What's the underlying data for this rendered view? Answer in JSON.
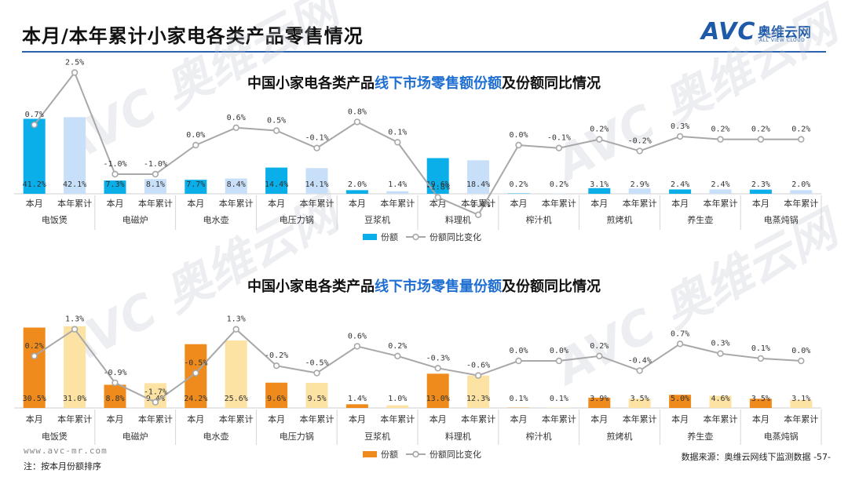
{
  "header": {
    "title": "本月/本年累计小家电各类产品零售情况",
    "logo_text": "AVC",
    "logo_cn": "奥维云网",
    "logo_en": "ALL VIEW CLOUD"
  },
  "colors": {
    "accent": "#2a63ad",
    "share_value_month": "#0aaee8",
    "share_value_ytd": "#c7dff8",
    "share_volume_month": "#ef8b1c",
    "share_volume_ytd": "#fde3a3",
    "yoy_line": "#a8a8a8"
  },
  "watermark": {
    "text": "AVC",
    "cn": "奥维云网",
    "en": "ALL VIEW CLOUD"
  },
  "charts": [
    {
      "title_prefix": "中国小家电各类产品",
      "title_highlight": "线下市场零售额份额",
      "title_suffix": "及份额同比情况",
      "legend_bar": "份额",
      "legend_line": "份额同比变化"
    },
    {
      "title_prefix": "中国小家电各类产品",
      "title_highlight": "线下市场零售量份额",
      "title_suffix": "及份额同比情况",
      "legend_bar": "份额",
      "legend_line": "份额同比变化"
    }
  ],
  "chart_data": [
    {
      "type": "bar",
      "title": "中国小家电各类产品线下市场零售额份额及份额同比情况",
      "groups": [
        "电饭煲",
        "电磁炉",
        "电水壶",
        "电压力锅",
        "豆浆机",
        "料理机",
        "榨汁机",
        "煎烤机",
        "养生壶",
        "电蒸炖锅"
      ],
      "sub_categories": [
        "本月",
        "本年累计"
      ],
      "series": [
        {
          "name": "份额",
          "kind": "bar",
          "month": [
            41.2,
            7.3,
            7.7,
            14.4,
            2.0,
            19.6,
            0.2,
            3.1,
            2.4,
            2.3
          ],
          "ytd": [
            42.1,
            8.1,
            8.4,
            14.1,
            1.4,
            18.4,
            0.2,
            2.9,
            2.4,
            2.0
          ]
        },
        {
          "name": "份额同比变化",
          "kind": "line",
          "month": [
            0.7,
            -1.0,
            0.0,
            0.5,
            0.8,
            -1.8,
            0.0,
            0.2,
            0.3,
            0.2
          ],
          "ytd": [
            2.5,
            -1.0,
            0.6,
            -0.1,
            0.1,
            -2.4,
            -0.1,
            -0.2,
            0.2,
            0.2
          ]
        }
      ],
      "bar_unit": "%",
      "line_unit": "%"
    },
    {
      "type": "bar",
      "title": "中国小家电各类产品线下市场零售量份额及份额同比情况",
      "groups": [
        "电饭煲",
        "电磁炉",
        "电水壶",
        "电压力锅",
        "豆浆机",
        "料理机",
        "榨汁机",
        "煎烤机",
        "养生壶",
        "电蒸炖锅"
      ],
      "sub_categories": [
        "本月",
        "本年累计"
      ],
      "series": [
        {
          "name": "份额",
          "kind": "bar",
          "month": [
            30.5,
            8.8,
            24.2,
            9.6,
            1.4,
            13.0,
            0.1,
            3.9,
            5.0,
            3.5
          ],
          "ytd": [
            31.0,
            9.4,
            25.6,
            9.5,
            1.0,
            12.3,
            0.1,
            3.5,
            4.6,
            3.1
          ]
        },
        {
          "name": "份额同比变化",
          "kind": "line",
          "month": [
            0.2,
            -0.9,
            -0.5,
            -0.2,
            0.6,
            -0.3,
            0.0,
            0.2,
            0.7,
            0.1
          ],
          "ytd": [
            1.3,
            -1.7,
            1.3,
            -0.5,
            0.2,
            -0.6,
            0.0,
            -0.4,
            0.3,
            0.0
          ]
        }
      ],
      "bar_unit": "%",
      "line_unit": "%"
    }
  ],
  "footer": {
    "url": "www.avc-mr.com",
    "note": "注：按本月份额排序",
    "source": "数据来源：奥维云网线下监测数据",
    "page": "-57-"
  }
}
